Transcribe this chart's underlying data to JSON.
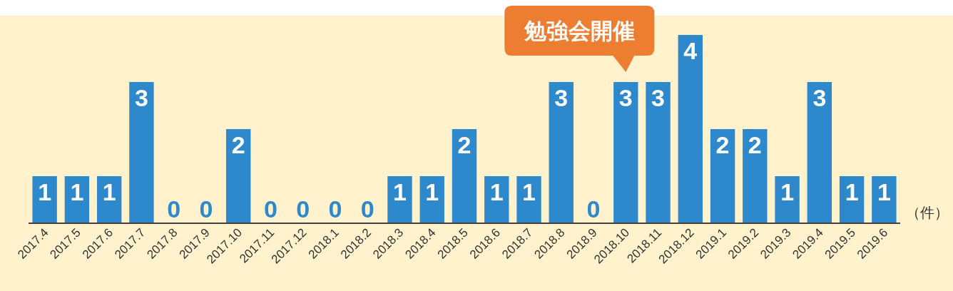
{
  "chart_data": {
    "type": "bar",
    "categories": [
      "2017.4",
      "2017.5",
      "2017.6",
      "2017.7",
      "2017.8",
      "2017.9",
      "2017.10",
      "2017.11",
      "2017.12",
      "2018.1",
      "2018.2",
      "2018.3",
      "2018.4",
      "2018.5",
      "2018.6",
      "2018.7",
      "2018.8",
      "2018.9",
      "2018.10",
      "2018.11",
      "2018.12",
      "2019.1",
      "2019.2",
      "2019.3",
      "2019.4",
      "2019.5",
      "2019.6"
    ],
    "values": [
      1,
      1,
      1,
      3,
      0,
      0,
      2,
      0,
      0,
      0,
      0,
      1,
      1,
      2,
      1,
      1,
      3,
      0,
      3,
      3,
      4,
      2,
      2,
      1,
      3,
      1,
      1
    ],
    "color": "#2e88cc",
    "data_labels": true,
    "ylabel": "（件）",
    "annotations": [
      {
        "text": "勉強会開催",
        "x": "2018.10",
        "y": 3
      }
    ]
  }
}
